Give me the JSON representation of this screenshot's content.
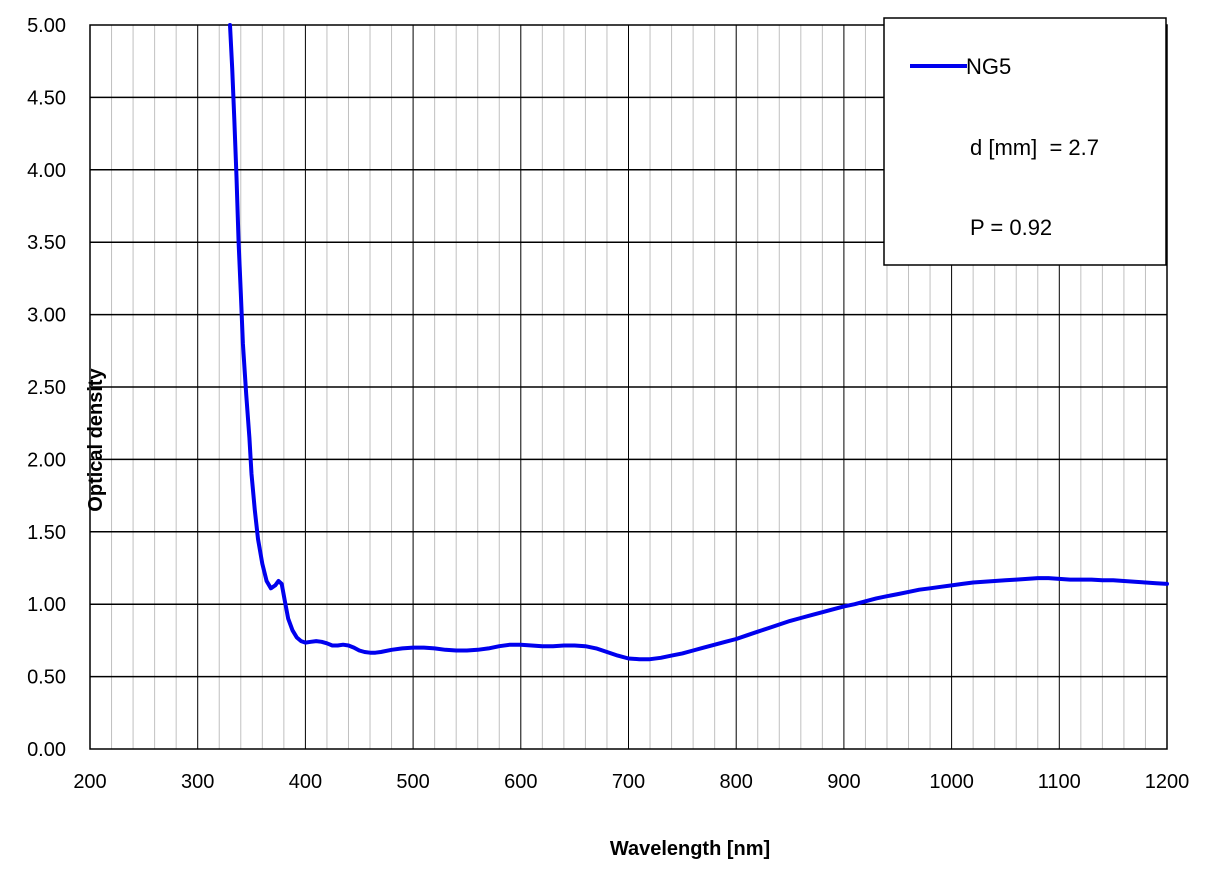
{
  "chart_data": {
    "type": "line",
    "xlabel": "Wavelength [nm]",
    "ylabel": "Optical density",
    "xlim": [
      200,
      1200
    ],
    "ylim": [
      0,
      5
    ],
    "x_ticks": [
      "200",
      "300",
      "400",
      "500",
      "600",
      "700",
      "800",
      "900",
      "1000",
      "1100",
      "1200"
    ],
    "y_ticks": [
      "0.00",
      "0.50",
      "1.00",
      "1.50",
      "2.00",
      "2.50",
      "3.00",
      "3.50",
      "4.00",
      "4.50",
      "5.00"
    ],
    "grid": {
      "major": true,
      "minor_x_step": 20
    },
    "legend_position": "top-right",
    "series": [
      {
        "name": "NG5",
        "color": "#0000ee",
        "x": [
          330,
          332,
          334,
          336,
          338,
          340,
          342,
          345,
          348,
          350,
          353,
          356,
          360,
          364,
          368,
          372,
          375,
          378,
          381,
          384,
          388,
          392,
          396,
          400,
          405,
          410,
          415,
          420,
          425,
          430,
          435,
          440,
          445,
          450,
          455,
          460,
          465,
          470,
          480,
          490,
          500,
          510,
          520,
          530,
          540,
          550,
          560,
          570,
          580,
          590,
          600,
          610,
          620,
          630,
          640,
          650,
          660,
          670,
          680,
          690,
          700,
          710,
          720,
          730,
          740,
          750,
          760,
          770,
          780,
          790,
          800,
          810,
          820,
          830,
          840,
          850,
          860,
          870,
          880,
          890,
          900,
          910,
          920,
          930,
          940,
          950,
          960,
          970,
          980,
          990,
          1000,
          1010,
          1020,
          1030,
          1040,
          1050,
          1060,
          1070,
          1080,
          1090,
          1100,
          1110,
          1120,
          1130,
          1140,
          1150,
          1160,
          1170,
          1180,
          1190,
          1200
        ],
        "y": [
          5.0,
          4.7,
          4.35,
          3.95,
          3.5,
          3.15,
          2.8,
          2.45,
          2.15,
          1.9,
          1.65,
          1.45,
          1.28,
          1.16,
          1.11,
          1.13,
          1.16,
          1.14,
          1.02,
          0.9,
          0.82,
          0.77,
          0.745,
          0.735,
          0.74,
          0.745,
          0.74,
          0.73,
          0.715,
          0.715,
          0.72,
          0.715,
          0.7,
          0.68,
          0.67,
          0.665,
          0.665,
          0.67,
          0.685,
          0.695,
          0.7,
          0.7,
          0.695,
          0.685,
          0.68,
          0.68,
          0.685,
          0.695,
          0.71,
          0.72,
          0.72,
          0.715,
          0.71,
          0.71,
          0.715,
          0.715,
          0.71,
          0.695,
          0.67,
          0.645,
          0.625,
          0.62,
          0.62,
          0.63,
          0.645,
          0.66,
          0.68,
          0.7,
          0.72,
          0.74,
          0.76,
          0.785,
          0.81,
          0.835,
          0.86,
          0.885,
          0.905,
          0.925,
          0.945,
          0.965,
          0.985,
          1.0,
          1.02,
          1.04,
          1.055,
          1.07,
          1.085,
          1.1,
          1.11,
          1.12,
          1.13,
          1.14,
          1.15,
          1.155,
          1.16,
          1.165,
          1.17,
          1.175,
          1.18,
          1.18,
          1.175,
          1.17,
          1.17,
          1.17,
          1.165,
          1.165,
          1.16,
          1.155,
          1.15,
          1.145,
          1.14
        ]
      }
    ],
    "annotations": [
      "d [mm]  = 2.7",
      "P = 0.92"
    ]
  }
}
